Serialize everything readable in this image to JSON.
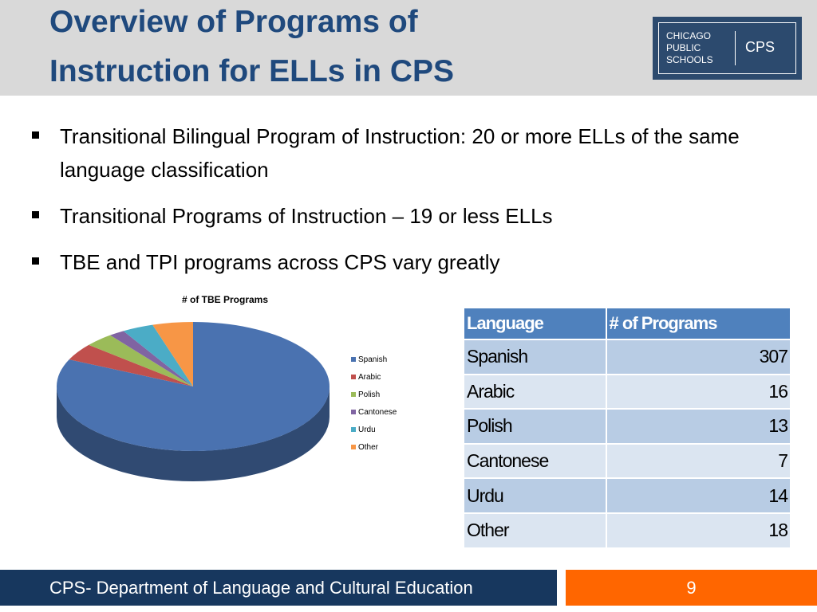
{
  "header": {
    "title_lines": [
      "Overview of Programs of",
      "Instruction for ELLs in CPS"
    ],
    "logo": {
      "lines": [
        "CHICAGO",
        "PUBLIC",
        "SCHOOLS"
      ],
      "abbr": "CPS"
    }
  },
  "bullets": [
    "Transitional Bilingual Program of Instruction: 20 or more ELLs of the same language classification",
    "Transitional Programs of Instruction – 19 or less ELLs",
    "TBE and TPI programs across CPS vary greatly"
  ],
  "chart_data": {
    "type": "pie",
    "title": "# of TBE  Programs",
    "categories": [
      "Spanish",
      "Arabic",
      "Polish",
      "Cantonese",
      "Urdu",
      "Other"
    ],
    "values": [
      307,
      16,
      13,
      7,
      14,
      18
    ],
    "colors": [
      "#4a72b0",
      "#c0504d",
      "#9bbb59",
      "#8064a2",
      "#4bacc6",
      "#f79646"
    ],
    "legend": "right"
  },
  "table": {
    "header": [
      "Language",
      "# of Programs"
    ],
    "rows": [
      [
        "Spanish",
        "307"
      ],
      [
        "Arabic",
        "16"
      ],
      [
        "Polish",
        "13"
      ],
      [
        "Cantonese",
        "7"
      ],
      [
        "Urdu",
        "14"
      ],
      [
        "Other",
        "18"
      ]
    ]
  },
  "footer": {
    "text": "CPS- Department of Language and Cultural Education",
    "page": "9"
  }
}
